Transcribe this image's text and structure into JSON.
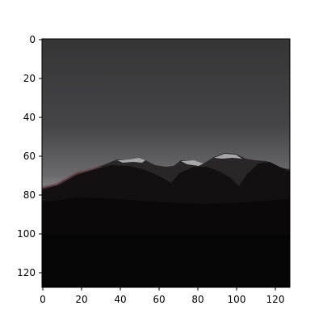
{
  "figure": {
    "image_description_icon": "mountain-silhouette-dusk-photo",
    "axes": {
      "x_ticks": [
        "0",
        "20",
        "40",
        "60",
        "80",
        "100",
        "120"
      ],
      "y_ticks": [
        "0",
        "20",
        "40",
        "60",
        "80",
        "100",
        "120"
      ],
      "x_range": [
        0,
        128
      ],
      "y_range": [
        0,
        128
      ]
    },
    "colors": {
      "sky_top": "#3a3a3a",
      "sky_mid": "#5a5a5c",
      "horizon_glow": "#d8cfd3",
      "mountain_far": "#1b1618",
      "mountain_near": "#0b0909",
      "ground": "#070606",
      "snow": "#e9e9ea"
    }
  }
}
